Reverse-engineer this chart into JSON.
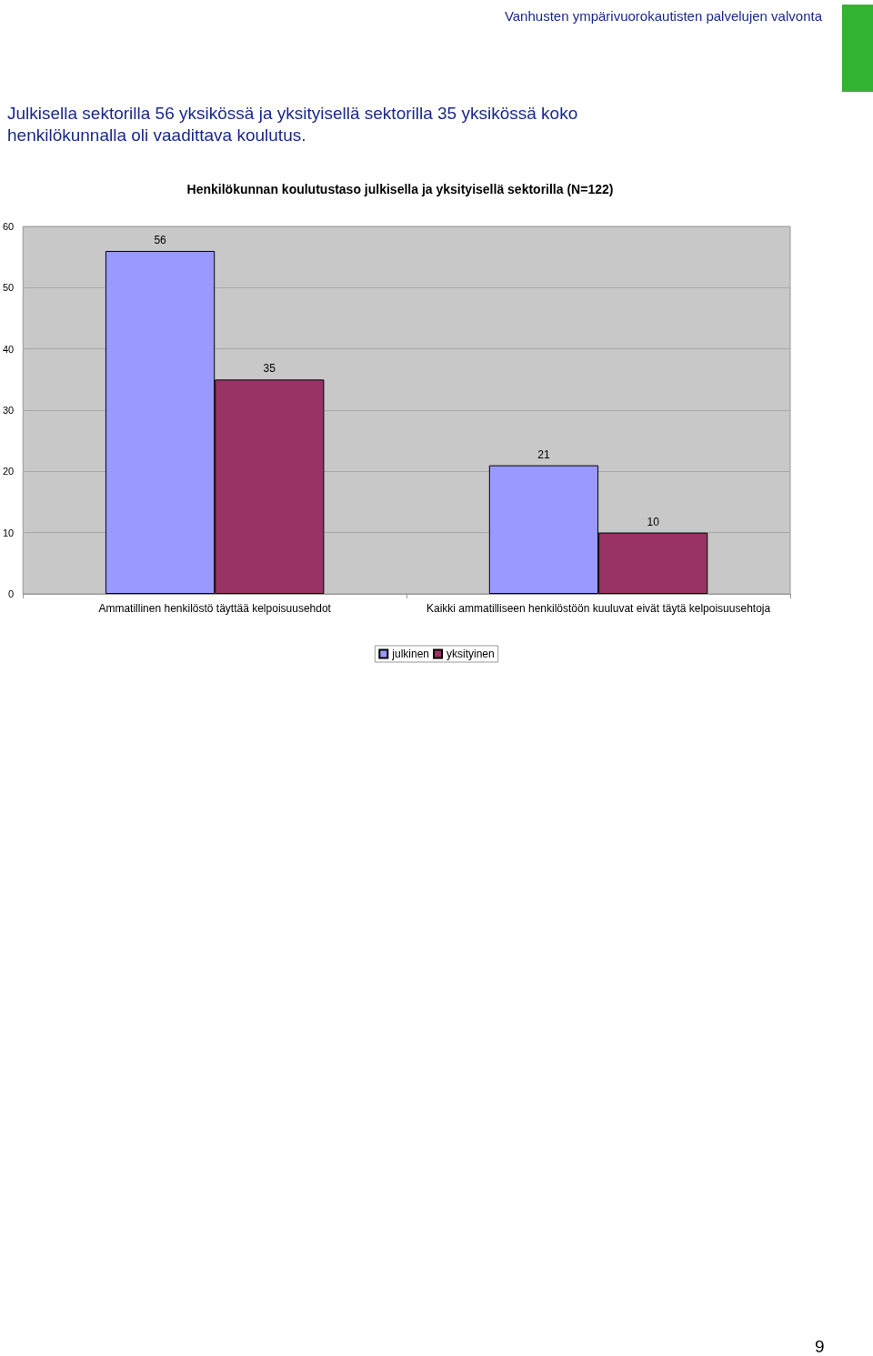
{
  "chart_data": {
    "type": "bar",
    "title": "Henkilökunnan koulutustaso julkisella ja yksityisellä sektorilla (N=122)",
    "annotations": [
      "Vanhusten ympärivuorokautisten palvelujen valvonta",
      "Julkisella sektorilla 56 yksikössä ja yksityisellä sektorilla 35 yksikössä koko henkilökunnalla oli vaadittava koulutus.",
      "9"
    ],
    "categories": [
      "Ammatillinen henkilöstö täyttää kelpoisuusehdot",
      "Kaikki ammatilliseen henkilöstöön kuuluvat eivät täytä kelpoisuusehtoja"
    ],
    "series": [
      {
        "name": "julkinen",
        "color": "#9999ff",
        "values": [
          56,
          21
        ]
      },
      {
        "name": "yksityinen",
        "color": "#993366",
        "values": [
          35,
          10
        ]
      }
    ],
    "ylim": [
      0,
      60
    ],
    "yticks": [
      0,
      10,
      20,
      30,
      40,
      50,
      60
    ],
    "grid": "y",
    "legend": "bottom",
    "data_labels": true
  }
}
